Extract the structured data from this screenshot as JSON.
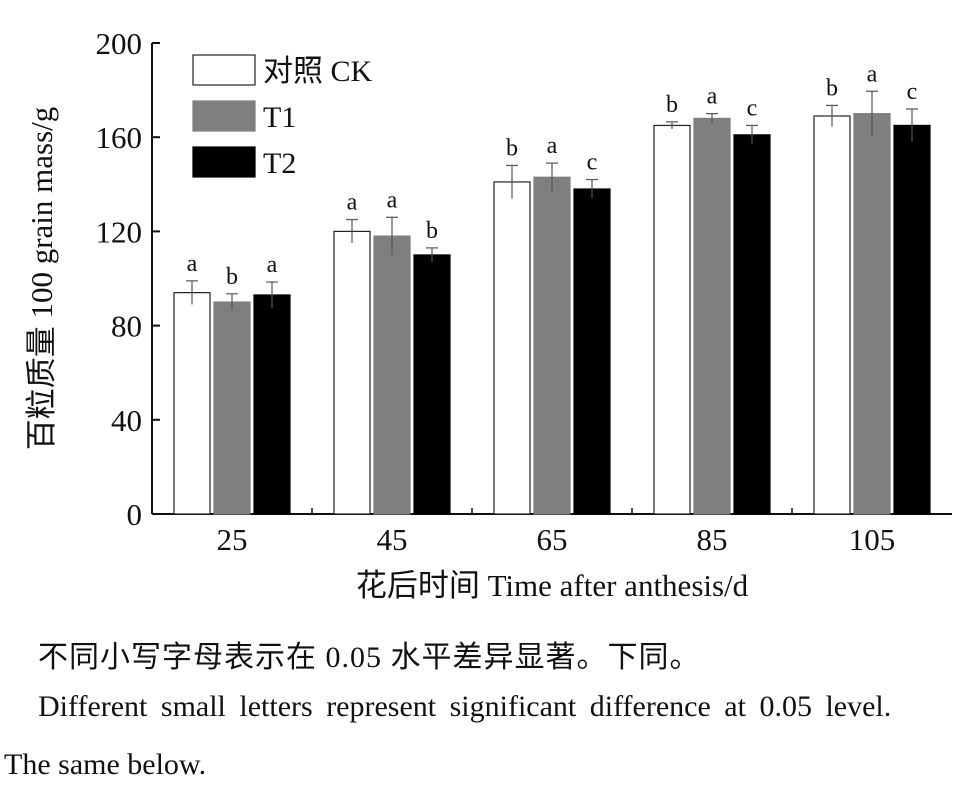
{
  "chart_data": {
    "type": "bar",
    "categories": [
      "25",
      "45",
      "65",
      "85",
      "105"
    ],
    "series": [
      {
        "name": "对照 CK",
        "color": "#ffffff",
        "values": [
          94,
          120,
          141,
          165,
          169
        ],
        "errors": [
          5,
          5,
          7,
          1.5,
          4.5
        ],
        "letters": [
          "a",
          "a",
          "b",
          "b",
          "b"
        ]
      },
      {
        "name": "T1",
        "color": "#7f7f7f",
        "values": [
          90,
          118,
          143,
          168,
          170
        ],
        "errors": [
          3.5,
          8,
          6,
          2,
          9.5
        ],
        "letters": [
          "b",
          "a",
          "a",
          "a",
          "a"
        ]
      },
      {
        "name": "T2",
        "color": "#000000",
        "values": [
          93,
          110,
          138,
          161,
          165
        ],
        "errors": [
          5.5,
          3,
          4,
          4,
          7
        ],
        "letters": [
          "a",
          "b",
          "c",
          "c",
          "c"
        ]
      }
    ],
    "ylim": [
      0,
      200
    ],
    "yticks": [
      0,
      40,
      80,
      120,
      160,
      200
    ],
    "ylabel": "百粒质量 100 grain mass/g",
    "xlabel": "花后时间 Time after anthesis/d",
    "legend_position": "top-left"
  },
  "notes": {
    "cn": "不同小写字母表示在 0.05 水平差异显著。下同。",
    "en_line1": "Different small letters represent significant difference at 0.05 level.",
    "en_line2": "The same below."
  }
}
